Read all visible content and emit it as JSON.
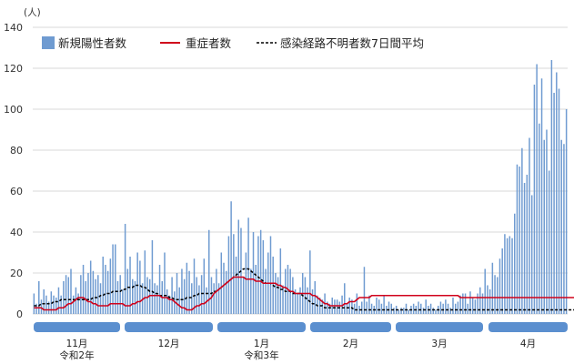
{
  "chart_data": {
    "type": "bar",
    "ylabel": "(人)",
    "ylim": [
      0,
      140
    ],
    "yticks": [
      0,
      20,
      40,
      60,
      80,
      100,
      120,
      140
    ],
    "grid": true,
    "legend_position": "top",
    "colors": {
      "bars": "#6f9bd1",
      "severe": "#d0021b",
      "avg": "#000000",
      "month_band": "#5b8fcf",
      "grid": "#d9d9d9"
    },
    "series": [
      {
        "name": "新規陽性者数",
        "kind": "bar",
        "values": [
          10,
          5,
          16,
          7,
          12,
          9,
          6,
          11,
          9,
          8,
          13,
          9,
          16,
          19,
          18,
          22,
          9,
          13,
          10,
          19,
          24,
          16,
          20,
          26,
          21,
          17,
          19,
          15,
          28,
          24,
          21,
          27,
          34,
          34,
          16,
          19,
          12,
          44,
          22,
          28,
          17,
          16,
          30,
          26,
          15,
          31,
          18,
          17,
          36,
          15,
          14,
          24,
          16,
          30,
          12,
          9,
          18,
          11,
          20,
          13,
          22,
          17,
          25,
          21,
          15,
          27,
          18,
          14,
          19,
          27,
          13,
          41,
          18,
          15,
          22,
          15,
          30,
          25,
          21,
          38,
          55,
          39,
          28,
          46,
          42,
          18,
          30,
          47,
          22,
          40,
          24,
          38,
          41,
          36,
          22,
          30,
          38,
          28,
          20,
          18,
          32,
          14,
          22,
          24,
          22,
          18,
          12,
          10,
          13,
          20,
          18,
          13,
          31,
          12,
          16,
          9,
          8,
          7,
          10,
          6,
          5,
          8,
          7,
          7,
          6,
          9,
          15,
          5,
          8,
          7,
          5,
          10,
          4,
          6,
          23,
          6,
          9,
          5,
          4,
          8,
          7,
          5,
          9,
          4,
          6,
          5,
          3,
          4,
          2,
          3,
          3,
          5,
          2,
          4,
          5,
          4,
          6,
          5,
          3,
          7,
          4,
          5,
          3,
          2,
          4,
          6,
          5,
          7,
          5,
          3,
          8,
          5,
          6,
          9,
          10,
          10,
          5,
          11,
          8,
          7,
          10,
          13,
          10,
          22,
          14,
          12,
          25,
          19,
          18,
          27,
          32,
          39,
          37,
          38,
          37,
          49,
          73,
          72,
          81,
          64,
          68,
          86,
          58,
          112,
          122,
          93,
          115,
          85,
          90,
          70,
          124,
          108,
          118,
          110,
          85,
          83,
          100
        ]
      },
      {
        "name": "重症者数",
        "kind": "line",
        "values": [
          3,
          3,
          3,
          3,
          2,
          2,
          2,
          2,
          2,
          2,
          3,
          3,
          3,
          4,
          5,
          5,
          6,
          7,
          8,
          8,
          8,
          7,
          6,
          6,
          5,
          5,
          4,
          4,
          4,
          4,
          4,
          5,
          5,
          5,
          5,
          5,
          5,
          4,
          4,
          4,
          5,
          5,
          6,
          6,
          7,
          8,
          8,
          9,
          9,
          9,
          9,
          9,
          8,
          8,
          8,
          7,
          7,
          6,
          5,
          4,
          3,
          3,
          2,
          2,
          2,
          3,
          4,
          4,
          5,
          5,
          6,
          7,
          8,
          10,
          11,
          12,
          13,
          14,
          15,
          16,
          17,
          18,
          18,
          18,
          18,
          18,
          17,
          17,
          17,
          17,
          16,
          16,
          16,
          15,
          15,
          15,
          15,
          15,
          15,
          14,
          14,
          13,
          13,
          12,
          11,
          11,
          10,
          10,
          10,
          10,
          10,
          10,
          10,
          9,
          9,
          8,
          7,
          6,
          5,
          5,
          4,
          4,
          4,
          4,
          4,
          4,
          5,
          5,
          6,
          6,
          6,
          7,
          8,
          8,
          8,
          8,
          8,
          9,
          9,
          9,
          9,
          9,
          9,
          9,
          9,
          9,
          9,
          9,
          9,
          9,
          9,
          9,
          9,
          9,
          9,
          9,
          9,
          9,
          9,
          9,
          9,
          9,
          9,
          9,
          9,
          9,
          9,
          9,
          9,
          9,
          9,
          9,
          9,
          8,
          8,
          8,
          8,
          8,
          8,
          8,
          8,
          8,
          8,
          8,
          8,
          8,
          8,
          8,
          8,
          8,
          8,
          8,
          8,
          8,
          8,
          8,
          8,
          8,
          8,
          8,
          8,
          8,
          8,
          8,
          8,
          8,
          8,
          8,
          8,
          8,
          8,
          8,
          8,
          8,
          8,
          8,
          8,
          8,
          8,
          8,
          8
        ]
      },
      {
        "name": "感染経路不明者数7日間平均",
        "kind": "line",
        "values": [
          4,
          4,
          4,
          5,
          5,
          5,
          5,
          5,
          6,
          6,
          6,
          7,
          7,
          7,
          7,
          7,
          7,
          7,
          7,
          7,
          7,
          7,
          7,
          7,
          8,
          8,
          8,
          9,
          9,
          10,
          10,
          10,
          11,
          11,
          11,
          11,
          12,
          12,
          13,
          13,
          13,
          14,
          14,
          14,
          13,
          13,
          12,
          11,
          11,
          10,
          10,
          9,
          9,
          9,
          9,
          8,
          8,
          7,
          7,
          7,
          7,
          7,
          8,
          8,
          8,
          9,
          9,
          10,
          10,
          10,
          10,
          10,
          10,
          11,
          11,
          12,
          13,
          14,
          15,
          16,
          17,
          18,
          19,
          20,
          21,
          22,
          22,
          22,
          21,
          20,
          19,
          18,
          17,
          16,
          15,
          15,
          15,
          14,
          13,
          13,
          12,
          12,
          11,
          11,
          11,
          10,
          10,
          10,
          10,
          9,
          8,
          7,
          6,
          5,
          5,
          4,
          4,
          4,
          3,
          3,
          3,
          3,
          3,
          3,
          3,
          3,
          3,
          3,
          3,
          3,
          2,
          2,
          2,
          2,
          2,
          2,
          2,
          2,
          2,
          2,
          2,
          2,
          2,
          2,
          2,
          2,
          2,
          2,
          2,
          2,
          2,
          2,
          2,
          2,
          2,
          2,
          2,
          2,
          2,
          2,
          2,
          2,
          2,
          2,
          2,
          2,
          2,
          2,
          2,
          2,
          2,
          2,
          2,
          2,
          2,
          2,
          2,
          2,
          2,
          2,
          2,
          2,
          2,
          2,
          2,
          2,
          2,
          2,
          2,
          2,
          2,
          2,
          2,
          2,
          2,
          2,
          2,
          2,
          2,
          2,
          2,
          2,
          2,
          2,
          2,
          2,
          2,
          2,
          2,
          2,
          2,
          2,
          2,
          2,
          2,
          2,
          2,
          2,
          2,
          2,
          2,
          2,
          2,
          2
        ]
      }
    ],
    "months": [
      {
        "label": "11月",
        "sublabel": "令和2年"
      },
      {
        "label": "12月",
        "sublabel": ""
      },
      {
        "label": "1月",
        "sublabel": "令和3年"
      },
      {
        "label": "2月",
        "sublabel": ""
      },
      {
        "label": "3月",
        "sublabel": ""
      },
      {
        "label": "4月",
        "sublabel": ""
      }
    ]
  }
}
